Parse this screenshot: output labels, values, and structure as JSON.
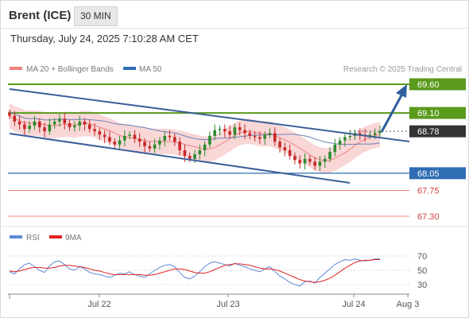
{
  "header": {
    "instrument": "Brent (ICE)",
    "timeframe": "30 MIN",
    "datetime": "Thursday, July 24, 2025 7:10:28 AM CET"
  },
  "legend": {
    "ma20": "MA 20 + Bollinger Bands",
    "ma50": "MA 50",
    "credit": "Research © 2025 Trading Central",
    "rsi": "RSI",
    "rsi_ma": "9MA"
  },
  "colors": {
    "resistance": "#5a9a1c",
    "support": "#2e6db4",
    "secondary_support": "#f08080",
    "price_label": "#333333",
    "channel": "#3a5f99",
    "arrow": "#2d5f9e",
    "bollinger": "#f7c6c6",
    "ma20": "#f08080",
    "ma50": "#6a7fb8",
    "candle_up": "#2e8b2e",
    "candle_down": "#c62828",
    "rsi_line": "#5b8ad6",
    "rsi_ma_line": "#e02020"
  },
  "chart_data": [
    {
      "type": "candlestick",
      "instrument": "Brent (ICE)",
      "interval": "30 MIN",
      "x_ticks": [
        "Jul 22",
        "Jul 23",
        "Jul 24",
        "Aug 3"
      ],
      "y_range": [
        67.0,
        70.0
      ],
      "last_price": 68.78,
      "levels": [
        {
          "name": "resistance-2",
          "value": 69.6,
          "label": "69.60",
          "kind": "resistance"
        },
        {
          "name": "resistance-1",
          "value": 69.1,
          "label": "69.10",
          "kind": "resistance"
        },
        {
          "name": "last-price",
          "value": 68.78,
          "label": "68.78",
          "kind": "price"
        },
        {
          "name": "pivot",
          "value": 68.05,
          "label": "68.05",
          "kind": "pivot"
        },
        {
          "name": "support-1",
          "value": 67.75,
          "label": "67.75",
          "kind": "support"
        },
        {
          "name": "support-2",
          "value": 67.3,
          "label": "67.30",
          "kind": "support"
        }
      ],
      "close_path": [
        69.05,
        68.95,
        68.9,
        68.82,
        68.88,
        68.95,
        68.85,
        68.78,
        68.9,
        68.95,
        69.0,
        68.92,
        68.85,
        68.88,
        68.95,
        68.9,
        68.82,
        68.78,
        68.72,
        68.68,
        68.6,
        68.55,
        68.62,
        68.7,
        68.72,
        68.65,
        68.6,
        68.52,
        68.48,
        68.55,
        68.62,
        68.7,
        68.68,
        68.6,
        68.45,
        68.35,
        68.3,
        68.38,
        68.45,
        68.55,
        68.7,
        68.8,
        68.82,
        68.78,
        68.72,
        68.85,
        68.8,
        68.75,
        68.7,
        68.68,
        68.65,
        68.72,
        68.75,
        68.6,
        68.5,
        68.45,
        68.35,
        68.28,
        68.22,
        68.3,
        68.25,
        68.18,
        68.25,
        68.3,
        68.42,
        68.55,
        68.62,
        68.68,
        68.7,
        68.75,
        68.72,
        68.7,
        68.72,
        68.75,
        68.78
      ],
      "series": [
        {
          "name": "MA 20 + Bollinger Bands",
          "kind": "moving-average"
        },
        {
          "name": "MA 50",
          "kind": "moving-average"
        }
      ],
      "annotations": [
        "descending channel",
        "upward arrow toward 69.60"
      ]
    },
    {
      "type": "line",
      "title": "RSI",
      "y_ticks": [
        70,
        50,
        30
      ],
      "series": [
        {
          "name": "RSI",
          "values": [
            48,
            45,
            52,
            58,
            60,
            55,
            50,
            47,
            56,
            62,
            63,
            58,
            52,
            50,
            55,
            52,
            47,
            45,
            44,
            42,
            40,
            43,
            46,
            45,
            48,
            44,
            42,
            40,
            45,
            50,
            54,
            57,
            58,
            55,
            47,
            40,
            38,
            42,
            48,
            55,
            60,
            62,
            60,
            58,
            56,
            60,
            57,
            55,
            52,
            50,
            48,
            52,
            55,
            48,
            42,
            38,
            33,
            30,
            28,
            34,
            35,
            32,
            40,
            46,
            52,
            58,
            62,
            65,
            64,
            66,
            64,
            63,
            64,
            66,
            66
          ]
        },
        {
          "name": "9MA",
          "values": [
            49,
            48,
            49,
            51,
            53,
            54,
            54,
            53,
            53,
            54,
            56,
            57,
            57,
            56,
            55,
            54,
            52,
            50,
            49,
            47,
            45,
            44,
            44,
            44,
            44,
            44,
            44,
            43,
            43,
            44,
            46,
            48,
            50,
            52,
            52,
            51,
            49,
            47,
            46,
            46,
            48,
            51,
            54,
            57,
            58,
            59,
            59,
            58,
            57,
            55,
            53,
            52,
            52,
            51,
            49,
            46,
            43,
            40,
            37,
            35,
            34,
            33,
            34,
            36,
            39,
            43,
            48,
            53,
            57,
            61,
            63,
            64,
            64,
            65,
            65
          ]
        }
      ]
    }
  ]
}
